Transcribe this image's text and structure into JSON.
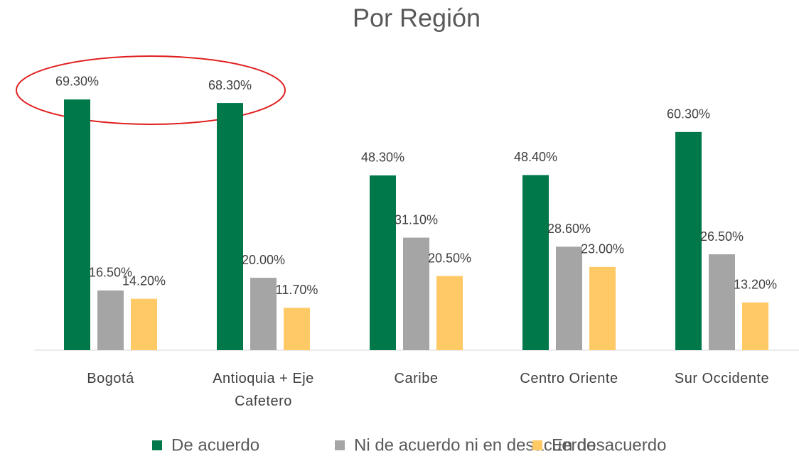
{
  "chart_data": {
    "type": "bar",
    "title": "Por Región",
    "categories": [
      "Bogotá",
      "Antioquia + Eje Cafetero",
      "Caribe",
      "Centro Oriente",
      "Sur Occidente"
    ],
    "series": [
      {
        "name": "De acuerdo",
        "color": "#00784a",
        "values": [
          69.3,
          68.3,
          48.3,
          48.4,
          60.3
        ],
        "value_labels": [
          "69.30%",
          "68.30%",
          "48.30%",
          "48.40%",
          "60.30%"
        ]
      },
      {
        "name": "Ni de acuerdo ni en desacuerdo",
        "color": "#a5a5a5",
        "values": [
          16.5,
          20.0,
          31.1,
          28.6,
          26.5
        ],
        "value_labels": [
          "16.50%",
          "20.00%",
          "31.10%",
          "28.60%",
          "26.50%"
        ]
      },
      {
        "name": "En desacuerdo",
        "color": "#ffc966",
        "values": [
          14.2,
          11.7,
          20.5,
          23.0,
          13.2
        ],
        "value_labels": [
          "14.20%",
          "11.70%",
          "20.50%",
          "23.00%",
          "13.20%"
        ]
      }
    ],
    "legend": "bottom"
  }
}
